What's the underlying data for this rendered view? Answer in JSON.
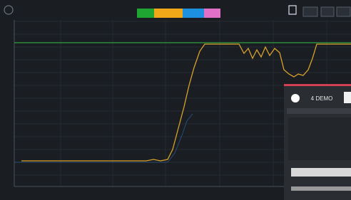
{
  "panel": {
    "title": "4 DEMO"
  }
}
